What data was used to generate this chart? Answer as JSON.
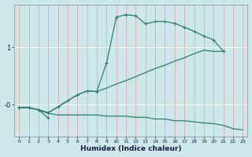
{
  "xlabel": "Humidex (Indice chaleur)",
  "bg_color": "#cce8e8",
  "grid_color_v": "#e8c8c8",
  "grid_color_h": "#ffffff",
  "line_color": "#2e7d6e",
  "xlim": [
    -0.5,
    23.5
  ],
  "ylim": [
    -0.55,
    1.75
  ],
  "yticks": [
    0.0,
    1.0
  ],
  "ytick_labels": [
    "-0",
    "1"
  ],
  "line2_x": [
    0,
    1,
    2,
    3,
    4,
    5,
    6,
    7,
    8,
    9,
    10,
    11,
    12,
    13,
    14,
    15,
    16,
    17,
    18,
    19,
    20,
    21,
    22,
    23
  ],
  "line2_y": [
    -0.05,
    -0.05,
    -0.09,
    -0.15,
    -0.18,
    -0.18,
    -0.18,
    -0.18,
    -0.18,
    -0.2,
    -0.2,
    -0.2,
    -0.22,
    -0.22,
    -0.25,
    -0.25,
    -0.28,
    -0.28,
    -0.3,
    -0.32,
    -0.33,
    -0.36,
    -0.42,
    -0.44
  ],
  "line4_x": [
    0,
    1,
    2,
    3,
    4,
    5,
    6,
    7,
    8,
    9,
    10,
    11,
    12,
    13,
    14,
    15,
    16,
    17,
    18,
    19,
    20,
    21
  ],
  "line4_y": [
    -0.05,
    -0.05,
    -0.09,
    -0.14,
    -0.04,
    0.07,
    0.17,
    0.24,
    0.23,
    0.29,
    0.36,
    0.42,
    0.49,
    0.56,
    0.63,
    0.69,
    0.76,
    0.82,
    0.89,
    0.95,
    0.93,
    0.93
  ],
  "line3_x": [
    0,
    1,
    2,
    3,
    4,
    5,
    6,
    7,
    8,
    9,
    10,
    11,
    12,
    13,
    14,
    15,
    16,
    17,
    18,
    19,
    20,
    21
  ],
  "line3_y": [
    -0.05,
    -0.05,
    -0.09,
    -0.14,
    -0.04,
    0.07,
    0.17,
    0.24,
    0.23,
    0.73,
    1.53,
    1.57,
    1.55,
    1.41,
    1.45,
    1.45,
    1.42,
    1.35,
    1.28,
    1.2,
    1.13,
    0.93
  ],
  "line1_x": [
    0,
    1,
    2,
    3
  ],
  "line1_y": [
    -0.05,
    -0.05,
    -0.09,
    -0.23
  ],
  "xtick_labels": [
    "0",
    "1",
    "2",
    "3",
    "4",
    "5",
    "6",
    "7",
    "8",
    "9",
    "10",
    "11",
    "12",
    "13",
    "14",
    "15",
    "16",
    "17",
    "18",
    "19",
    "20",
    "21",
    "22",
    "23"
  ]
}
